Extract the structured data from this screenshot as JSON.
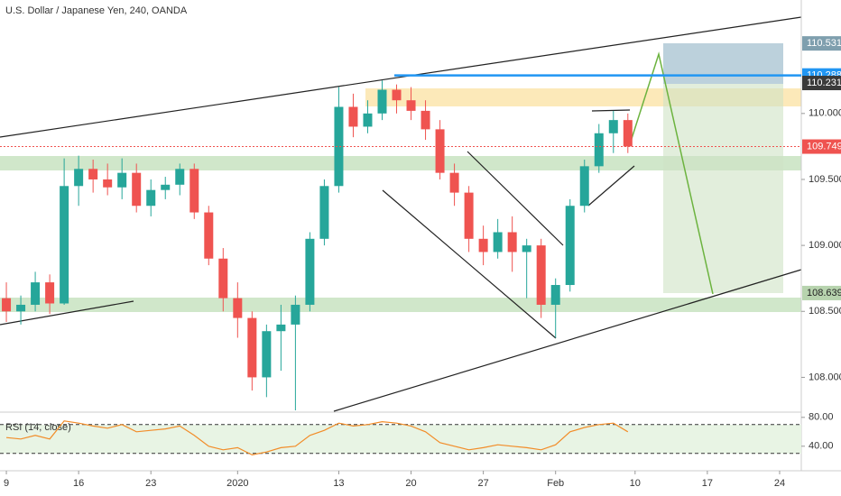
{
  "chart_data": {
    "type": "candlestick",
    "title": "U.S. Dollar / Japanese Yen, 240, OANDA",
    "x": [
      0,
      1,
      2,
      3,
      4,
      5,
      6,
      7,
      8,
      9,
      10,
      11,
      12,
      13,
      14,
      15,
      16,
      17,
      18,
      19,
      20,
      21,
      22,
      23,
      24,
      25,
      26,
      27,
      28,
      29,
      30,
      31,
      32,
      33,
      34,
      35,
      36,
      37,
      38,
      39,
      40,
      41,
      42,
      43
    ],
    "open": [
      108.6,
      108.5,
      108.55,
      108.72,
      108.56,
      109.45,
      109.58,
      109.5,
      109.44,
      109.55,
      109.3,
      109.42,
      109.46,
      109.58,
      109.25,
      108.9,
      108.6,
      108.45,
      108.0,
      108.35,
      108.4,
      108.55,
      109.05,
      109.45,
      110.05,
      109.9,
      110.0,
      110.18,
      110.1,
      110.02,
      109.88,
      109.55,
      109.4,
      109.05,
      108.95,
      109.1,
      108.95,
      109.0,
      108.55,
      108.7,
      109.3,
      109.6,
      109.85,
      109.95
    ],
    "high": [
      108.72,
      108.62,
      108.8,
      108.78,
      109.66,
      109.68,
      109.65,
      109.62,
      109.66,
      109.62,
      109.5,
      109.52,
      109.62,
      109.62,
      109.3,
      108.98,
      108.72,
      108.5,
      108.4,
      108.55,
      108.62,
      109.1,
      109.5,
      110.2,
      110.15,
      110.1,
      110.25,
      110.22,
      110.2,
      110.1,
      109.95,
      109.62,
      109.45,
      109.15,
      109.2,
      109.22,
      109.05,
      109.05,
      108.75,
      109.35,
      109.65,
      109.92,
      110.02,
      110.0
    ],
    "low": [
      108.42,
      108.4,
      108.5,
      108.48,
      108.55,
      109.3,
      109.4,
      109.38,
      109.35,
      109.25,
      109.22,
      109.35,
      109.38,
      109.2,
      108.85,
      108.5,
      108.3,
      107.9,
      107.85,
      108.05,
      107.75,
      108.5,
      109.0,
      109.4,
      109.82,
      109.85,
      109.95,
      110.0,
      109.95,
      109.8,
      109.5,
      109.3,
      108.95,
      108.85,
      108.9,
      108.8,
      108.6,
      108.45,
      108.3,
      108.65,
      109.25,
      109.55,
      109.7,
      109.7
    ],
    "close": [
      108.5,
      108.55,
      108.72,
      108.56,
      109.45,
      109.58,
      109.5,
      109.44,
      109.55,
      109.3,
      109.42,
      109.46,
      109.58,
      109.25,
      108.9,
      108.6,
      108.45,
      108.0,
      108.35,
      108.4,
      108.55,
      109.05,
      109.45,
      110.05,
      109.9,
      110.0,
      110.18,
      110.1,
      110.02,
      109.88,
      109.55,
      109.4,
      109.05,
      108.95,
      109.1,
      108.95,
      109.0,
      108.55,
      108.7,
      109.3,
      109.6,
      109.85,
      109.95,
      109.75
    ],
    "up_color": "#26a69a",
    "down_color": "#ef5350",
    "xlim": [
      -0.44,
      55
    ],
    "xticks": [
      {
        "value": 0,
        "label": "9"
      },
      {
        "value": 5,
        "label": "16"
      },
      {
        "value": 10,
        "label": "23"
      },
      {
        "value": 16,
        "label": "2020"
      },
      {
        "value": 23,
        "label": "13"
      },
      {
        "value": 28,
        "label": "20"
      },
      {
        "value": 33,
        "label": "27"
      },
      {
        "value": 38,
        "label": "Feb"
      },
      {
        "value": 43.5,
        "label": "10"
      },
      {
        "value": 48.5,
        "label": "17"
      },
      {
        "value": 53.5,
        "label": "24"
      }
    ],
    "ylim": [
      107.75,
      110.86
    ],
    "yticks": [
      {
        "value": 108,
        "label": "108.000"
      },
      {
        "value": 108.5,
        "label": "108.500"
      },
      {
        "value": 109,
        "label": "109.000"
      },
      {
        "value": 109.5,
        "label": "109.500"
      },
      {
        "value": 110,
        "label": "110.000"
      }
    ],
    "price_markers": [
      {
        "value": 110.531,
        "color": "#7f9fae"
      },
      {
        "value": 110.288,
        "color": "#2196f3"
      },
      {
        "value": 110.231,
        "color": "#3a3a3a"
      },
      {
        "value": 109.749,
        "color": "#ef5350"
      },
      {
        "value": 108.639,
        "color": "#b7d3ae"
      }
    ],
    "rsi": {
      "title": "RSI (14, close)",
      "color": "#f28c28",
      "values": [
        52,
        50,
        55,
        50,
        75,
        72,
        68,
        65,
        70,
        60,
        62,
        64,
        68,
        55,
        40,
        35,
        38,
        28,
        32,
        38,
        40,
        55,
        62,
        72,
        68,
        70,
        74,
        72,
        68,
        60,
        45,
        40,
        35,
        38,
        42,
        40,
        38,
        35,
        42,
        60,
        66,
        70,
        72,
        60
      ],
      "ylim": [
        11,
        86
      ],
      "yticks": [
        {
          "value": 80,
          "label": "80.00"
        },
        {
          "value": 40,
          "label": "40.00"
        }
      ],
      "levels": [
        70,
        30
      ]
    }
  }
}
